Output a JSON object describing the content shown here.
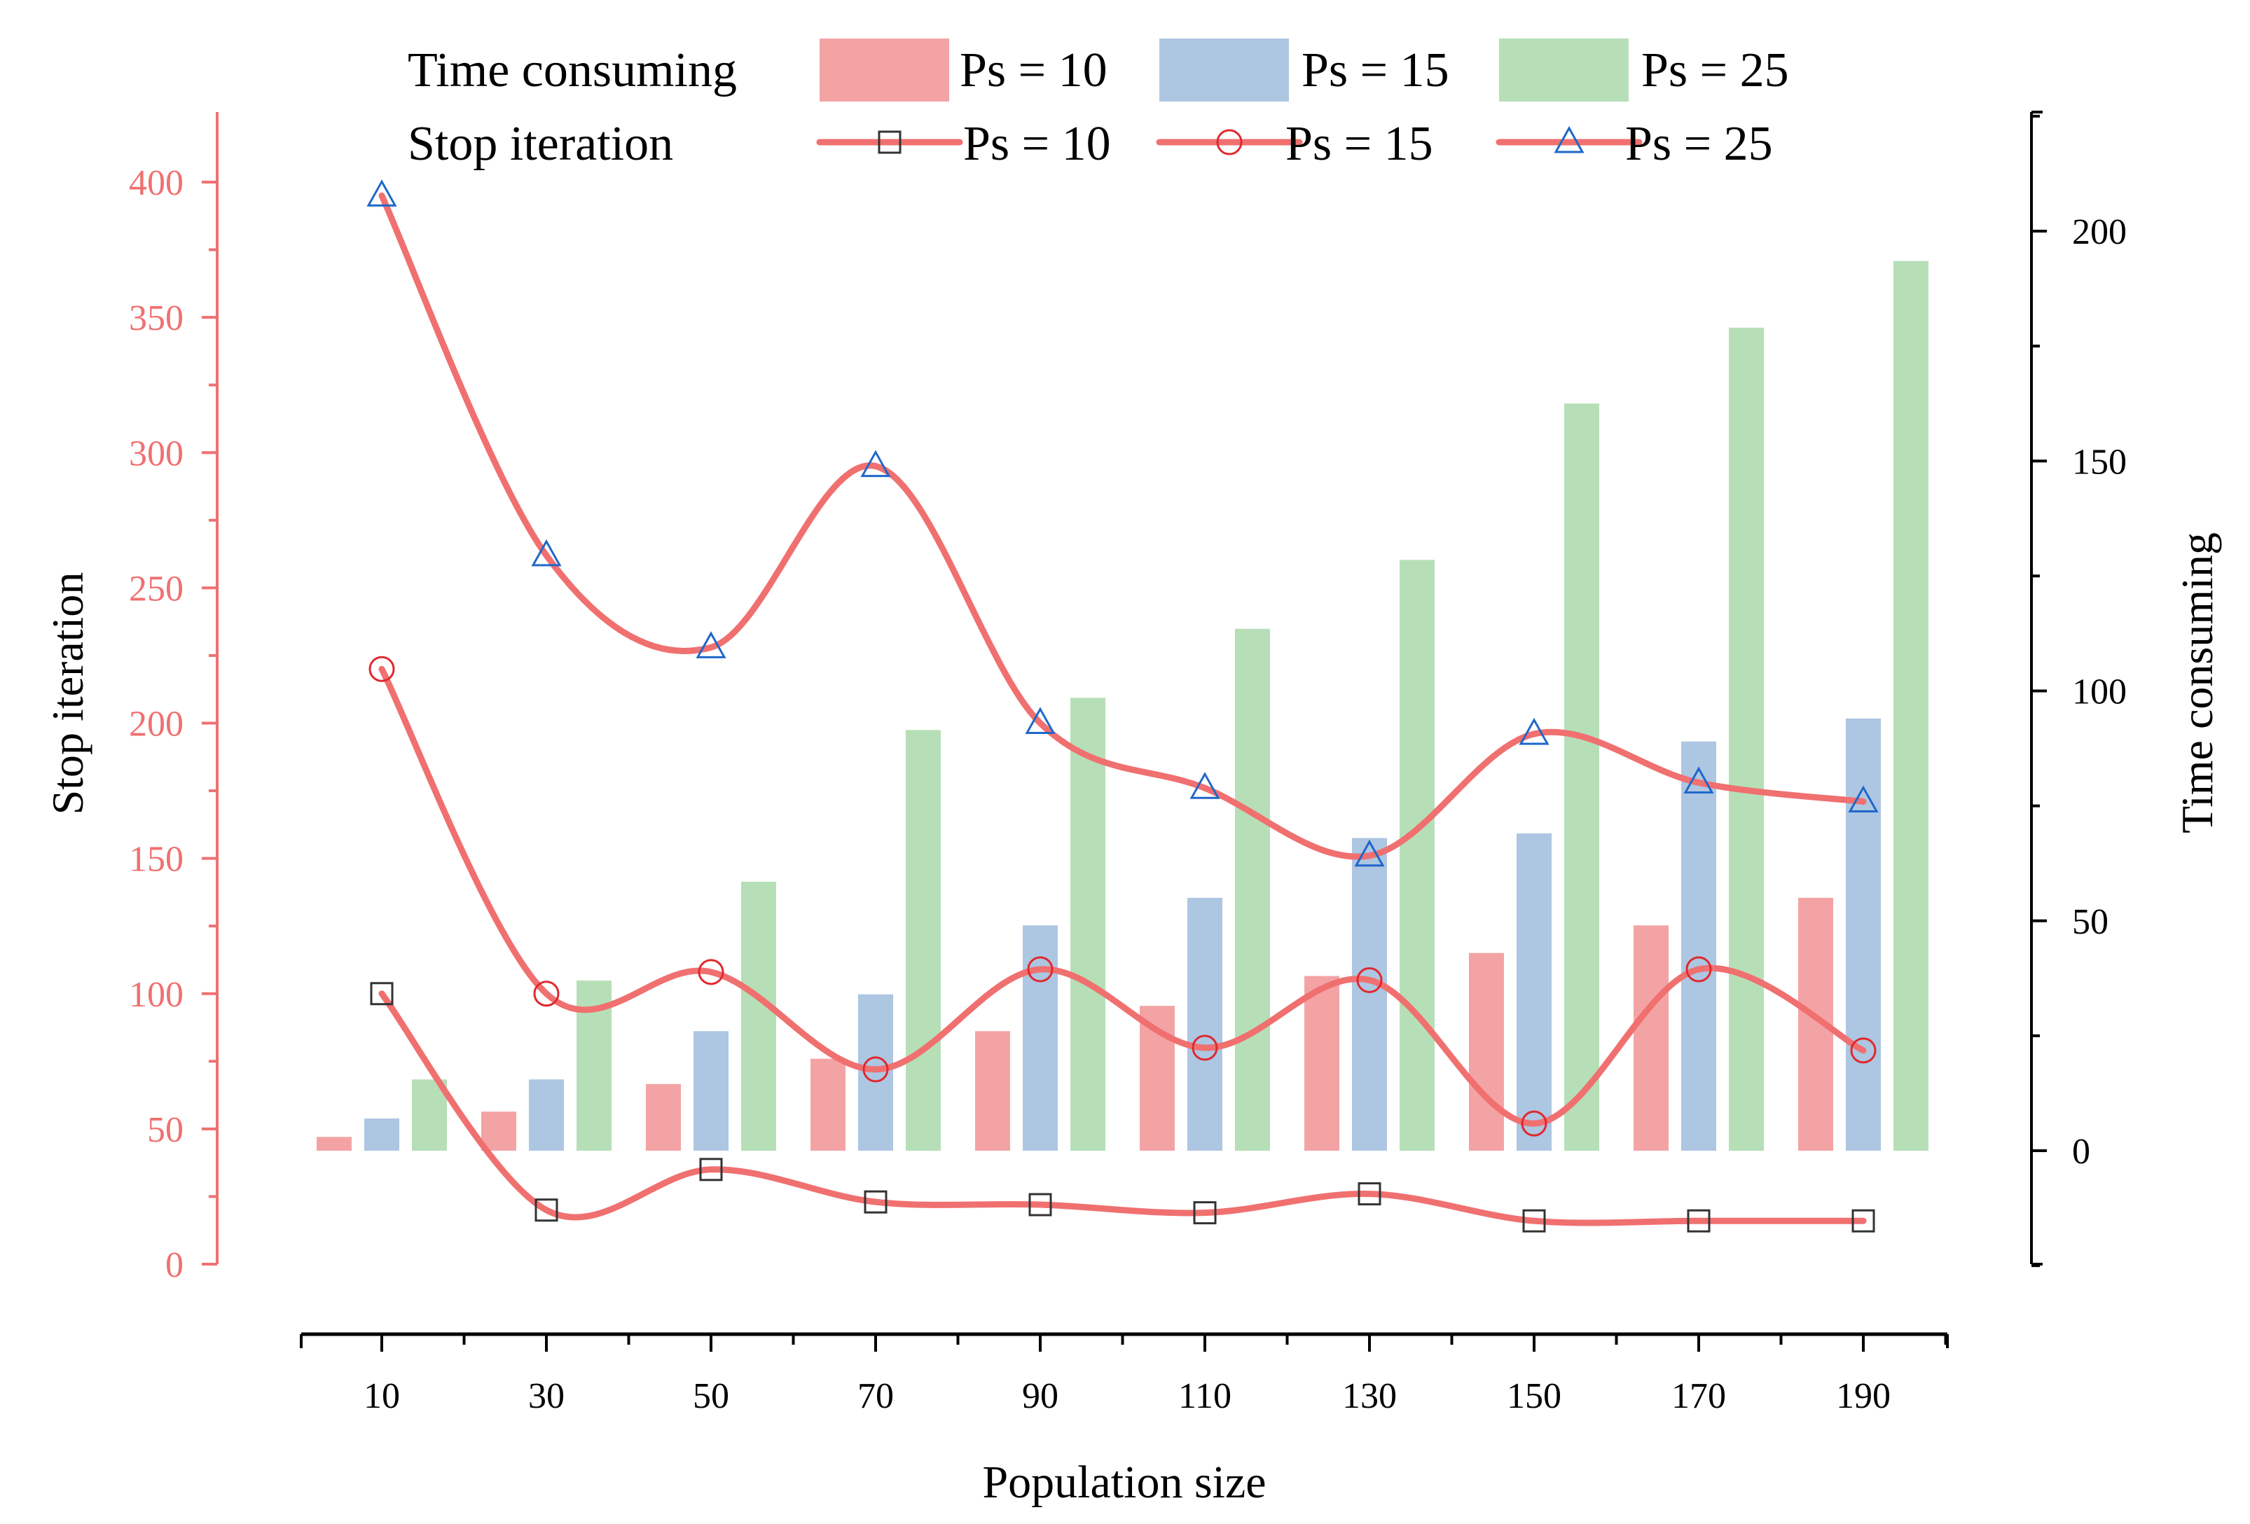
{
  "chart_data": {
    "type": "bar+line",
    "x_label": "Population size",
    "x_ticks": [
      10,
      30,
      50,
      70,
      90,
      110,
      130,
      150,
      170,
      190
    ],
    "left_axis": {
      "label": "Stop iteration",
      "ylim": [
        0,
        420
      ],
      "ticks": [
        0,
        50,
        100,
        150,
        200,
        250,
        300,
        350,
        400
      ],
      "color": "#f07070"
    },
    "right_axis": {
      "label": "Time consuming",
      "ylim": [
        -25,
        225
      ],
      "ticks": [
        0,
        50,
        100,
        150,
        200
      ],
      "color": "#000000"
    },
    "legend": {
      "bar_title": "Time consuming",
      "line_title": "Stop iteration"
    },
    "bar_series": [
      {
        "name": "Ps = 10",
        "color": "#f4a3a5",
        "values": [
          3,
          8.5,
          14.5,
          20,
          26,
          31.5,
          38,
          43,
          49,
          55
        ]
      },
      {
        "name": "Ps = 15",
        "color": "#adc6e2",
        "values": [
          7,
          15.5,
          26,
          34,
          49,
          55,
          68,
          69,
          89,
          94
        ]
      },
      {
        "name": "Ps = 25",
        "color": "#b7dfb7",
        "values": [
          15.5,
          37,
          58.5,
          91.5,
          98.5,
          113.5,
          128.5,
          162.5,
          179,
          193.5
        ]
      }
    ],
    "line_series": [
      {
        "name": "Ps = 10",
        "marker": "square",
        "marker_color": "#333333",
        "line_color": "#f07070",
        "values": [
          100,
          20,
          35,
          23,
          22,
          19,
          26,
          16,
          16,
          16
        ]
      },
      {
        "name": "Ps = 15",
        "marker": "circle",
        "marker_color": "#e0282d",
        "line_color": "#f07070",
        "values": [
          220,
          100,
          108,
          72,
          109,
          80,
          105,
          52,
          109,
          79
        ]
      },
      {
        "name": "Ps = 25",
        "marker": "triangle",
        "marker_color": "#1f67c9",
        "line_color": "#f07070",
        "values": [
          395,
          262,
          228,
          295,
          200,
          176,
          151,
          196,
          178,
          171
        ]
      }
    ]
  }
}
